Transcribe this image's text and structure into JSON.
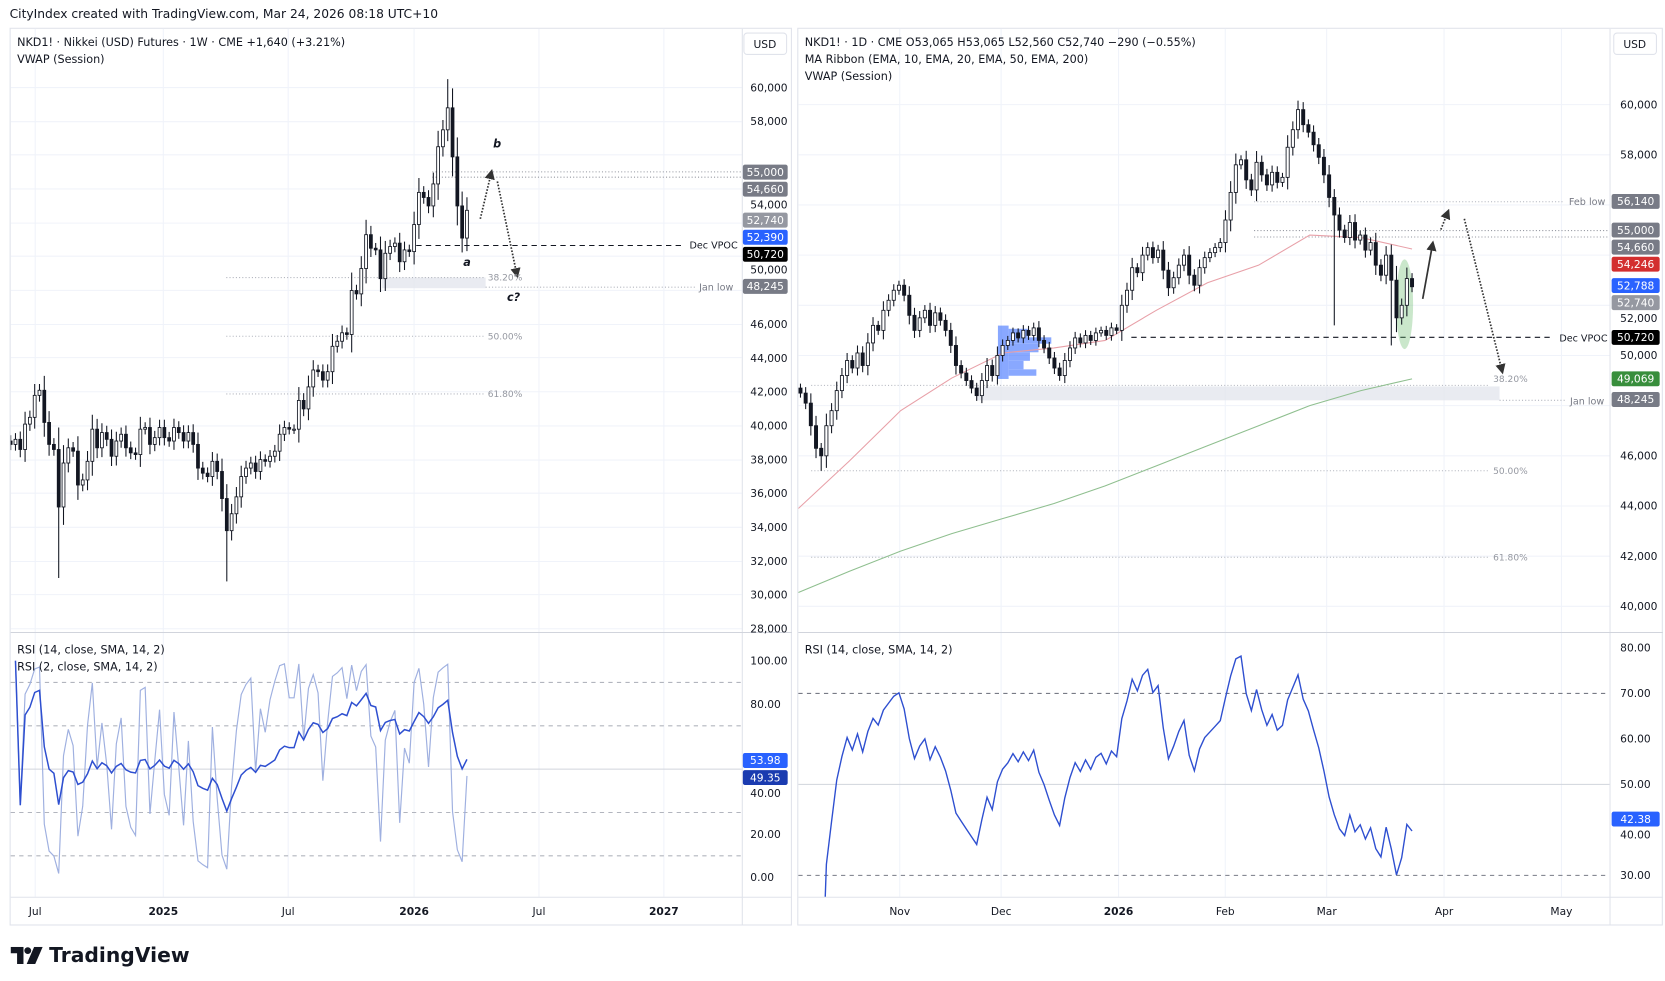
{
  "header": {
    "credit": "CityIndex created with TradingView.com, Mar 24, 2026 08:18 UTC+10"
  },
  "brand": {
    "name": "TradingView"
  },
  "left_chart": {
    "legend": {
      "symbol": "NKD1! · Nikkei (USD) Futures · 1W · CME  +1,640 (+3.21%)",
      "indicator": "VWAP (Session)"
    },
    "currency": "USD",
    "time_labels": [
      "Jul",
      "2025",
      "Jul",
      "2026",
      "Jul",
      "2027"
    ],
    "annotations": {
      "a": "a",
      "b": "b",
      "c": "c?",
      "dec_vpoc": "Dec VPOC",
      "jan_low": "Jan low",
      "fib_382": "38.20%",
      "fib_50": "50.00%",
      "fib_618": "61.80%"
    },
    "rsi_legend": {
      "rsi14": "RSI (14, close, SMA, 14, 2)",
      "rsi2": "RSI (2, close, SMA, 14, 2)"
    }
  },
  "right_chart": {
    "legend": {
      "symbol": "NKD1! · 1D · CME  O53,065  H53,065  L52,560  C52,740  −290 (−0.55%)",
      "ma": "MA Ribbon (EMA, 10, EMA, 20, EMA, 50, EMA, 200)",
      "indicator": "VWAP (Session)"
    },
    "currency": "USD",
    "time_labels": [
      "Nov",
      "Dec",
      "2026",
      "Feb",
      "Mar",
      "Apr",
      "May"
    ],
    "annotations": {
      "feb_low": "Feb low",
      "dec_vpoc": "Dec VPOC",
      "jan_low": "Jan low",
      "fib_382": "38.20%",
      "fib_50": "50.00%",
      "fib_618": "61.80%"
    },
    "rsi_legend": {
      "rsi14": "RSI (14, close, SMA, 14, 2)"
    }
  },
  "chart_data": [
    {
      "type": "candlestick",
      "title": "NKD1! · Nikkei (USD) Futures · 1W · CME",
      "interval": "1W",
      "ylim": [
        28000,
        60000
      ],
      "y_ticks": [
        "60,000",
        "58,000",
        "54,000",
        "50,000",
        "46,000",
        "44,000",
        "42,000",
        "40,000",
        "38,000",
        "36,000",
        "34,000",
        "32,000",
        "30,000",
        "28,000"
      ],
      "price_tags": [
        {
          "text": "55,000",
          "bg": "#787b86",
          "fg": "#ffffff"
        },
        {
          "text": "54,660",
          "bg": "#787b86",
          "fg": "#ffffff"
        },
        {
          "text": "52,740",
          "bg": "#9598a1",
          "fg": "#ffffff"
        },
        {
          "text": "52,390",
          "bg": "#2962ff",
          "fg": "#ffffff"
        },
        {
          "text": "50,720",
          "bg": "#000000",
          "fg": "#ffffff"
        },
        {
          "text": "48,245",
          "bg": "#787b86",
          "fg": "#ffffff"
        }
      ],
      "closes": [
        38900,
        39200,
        38600,
        40100,
        40500,
        41800,
        42100,
        40200,
        38900,
        38600,
        35200,
        37800,
        38700,
        38500,
        36500,
        36800,
        37900,
        39800,
        38700,
        39600,
        39200,
        38200,
        39100,
        39500,
        38700,
        38400,
        38300,
        39800,
        39900,
        38900,
        39300,
        39900,
        39300,
        39100,
        39900,
        39600,
        39100,
        39600,
        38900,
        37500,
        37200,
        37000,
        37900,
        37300,
        35700,
        33800,
        34800,
        35800,
        37000,
        37500,
        37800,
        37300,
        38000,
        37900,
        38200,
        38500,
        39500,
        39900,
        39800,
        39800,
        41500,
        41000,
        42300,
        43300,
        43200,
        42700,
        43200,
        44700,
        45000,
        45500,
        45400,
        48000,
        47800,
        49300,
        51300,
        50500,
        50400,
        48700,
        50200,
        50600,
        50800,
        49700,
        50400,
        50300,
        51900,
        53800,
        53500,
        53000,
        54300,
        56500,
        57500,
        58800,
        55900,
        53000,
        51100,
        52740
      ],
      "extremes": [
        {
          "week": "2024-08-05",
          "low": 31000
        },
        {
          "week": "2025-04-07",
          "low": 30800
        },
        {
          "week": "2026-02-23",
          "high": 60500
        }
      ],
      "levels": {
        "dec_vpoc": 50720,
        "jan_low": 48245,
        "fib_382": 48245,
        "fib_50": 45600,
        "fib_618": 42200
      },
      "rsi": {
        "ylim": [
          0,
          100
        ],
        "y_ticks": [
          "100.00",
          "80.00",
          "40.00",
          "20.00",
          "0.00"
        ],
        "last_rsi2": "53.98",
        "last_rsi14": "49.35",
        "bands": [
          90,
          70,
          50,
          30,
          10
        ]
      }
    },
    {
      "type": "candlestick",
      "title": "NKD1! · 1D · CME",
      "interval": "1D",
      "ylim": [
        39500,
        61000
      ],
      "y_ticks": [
        "60,000",
        "58,000",
        "52,000",
        "50,000",
        "46,000",
        "44,000",
        "42,000",
        "40,000"
      ],
      "price_tags": [
        {
          "text": "56,140",
          "bg": "#787b86",
          "fg": "#ffffff"
        },
        {
          "text": "55,000",
          "bg": "#787b86",
          "fg": "#ffffff"
        },
        {
          "text": "54,660",
          "bg": "#787b86",
          "fg": "#ffffff"
        },
        {
          "text": "54,246",
          "bg": "#d32f2f",
          "fg": "#ffffff"
        },
        {
          "text": "52,788",
          "bg": "#2962ff",
          "fg": "#ffffff"
        },
        {
          "text": "52,740",
          "bg": "#9598a1",
          "fg": "#ffffff"
        },
        {
          "text": "50,720",
          "bg": "#000000",
          "fg": "#ffffff"
        },
        {
          "text": "49,069",
          "bg": "#388e3c",
          "fg": "#ffffff"
        },
        {
          "text": "48,245",
          "bg": "#787b86",
          "fg": "#ffffff"
        }
      ],
      "closes": [
        48500,
        48100,
        47200,
        46300,
        46000,
        47200,
        47800,
        48600,
        49200,
        49800,
        49500,
        50100,
        49600,
        50500,
        51200,
        51000,
        51800,
        52200,
        52600,
        52800,
        52400,
        51600,
        51000,
        51500,
        51800,
        51200,
        51700,
        51400,
        51000,
        50400,
        49600,
        49300,
        49000,
        48700,
        48400,
        49000,
        49600,
        49200,
        50000,
        50400,
        50600,
        50900,
        50700,
        51000,
        50800,
        51100,
        50600,
        50300,
        49900,
        49500,
        49200,
        49800,
        50300,
        50700,
        50500,
        50800,
        50600,
        50900,
        51000,
        50800,
        51100,
        51000,
        52000,
        52600,
        53500,
        53300,
        54000,
        54300,
        53900,
        54200,
        53400,
        52700,
        53100,
        53600,
        54000,
        53200,
        52800,
        53500,
        53900,
        54100,
        54300,
        54500,
        55400,
        56500,
        57600,
        57800,
        57000,
        56600,
        57700,
        57200,
        56800,
        57300,
        56900,
        57100,
        58300,
        59000,
        59800,
        59200,
        58900,
        58400,
        57900,
        57200,
        56300,
        55600,
        55000,
        54700,
        55300,
        54600,
        54800,
        54200,
        54500,
        53600,
        53200,
        54000,
        53000,
        51500,
        52000,
        53065,
        52740
      ],
      "ema50_sampled": [
        43900,
        45800,
        47800,
        49100,
        50100,
        50300,
        50600,
        51800,
        52900,
        53600,
        54800,
        54700,
        54246
      ],
      "ema200_sampled": [
        40550,
        41400,
        42200,
        42900,
        43500,
        44100,
        44800,
        45600,
        46400,
        47200,
        48000,
        48600,
        49069
      ],
      "colors": {
        "ema50": "#e8a0a8",
        "ema200": "#8fbf8f",
        "volume_profile": "#2962ff",
        "highlight": "#66bb6a"
      },
      "levels": {
        "feb_low": 56140,
        "dec_vpoc": 50720,
        "jan_low": 48245,
        "fib_382": 48245,
        "fib_50": 45700,
        "fib_618": 42250
      },
      "rsi": {
        "ylim": [
          28,
          82
        ],
        "y_ticks": [
          "80.00",
          "70.00",
          "60.00",
          "50.00",
          "40.00",
          "30.00"
        ],
        "last_rsi14": "42.38",
        "bands": [
          70,
          50,
          30
        ]
      }
    }
  ]
}
